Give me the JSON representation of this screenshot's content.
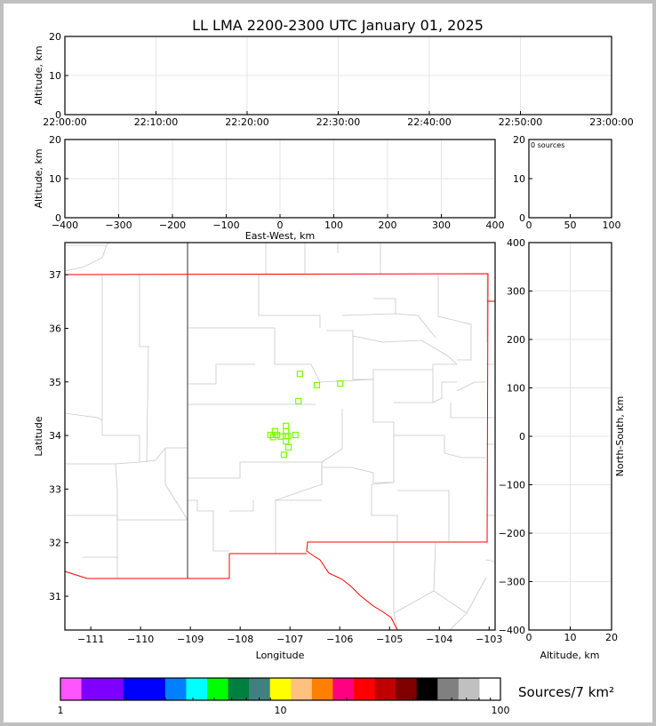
{
  "title": "LL LMA 2200-2300 UTC January 01, 2025",
  "chart_data": [
    {
      "type": "scatter",
      "name_hint": "time-altitude",
      "ylabel": "Altitude, km",
      "xlabel": "",
      "xticks": [
        "22:00:00",
        "22:10:00",
        "22:20:00",
        "22:30:00",
        "22:40:00",
        "22:50:00",
        "23:00:00"
      ],
      "ylim": [
        0,
        20
      ],
      "yticks": [
        0,
        10,
        20
      ],
      "points": []
    },
    {
      "type": "scatter",
      "name_hint": "east-west-altitude",
      "xlabel": "East-West, km",
      "ylabel": "Altitude, km",
      "xlim": [
        -400,
        400
      ],
      "xticks": [
        -400,
        -300,
        -200,
        -100,
        0,
        100,
        200,
        300,
        400
      ],
      "ylim": [
        0,
        20
      ],
      "yticks": [
        0,
        10,
        20
      ],
      "points": []
    },
    {
      "type": "bar",
      "name_hint": "altitude-histogram",
      "annotation": "0 sources",
      "xlim": [
        0,
        100
      ],
      "xticks": [
        0,
        50,
        100
      ],
      "ylim": [
        0,
        20
      ],
      "yticks": [
        0,
        10,
        20
      ],
      "values": []
    },
    {
      "type": "scatter",
      "name_hint": "plan-view-map",
      "xlabel": "Longitude",
      "ylabel": "Latitude",
      "xlim": [
        -111.52,
        -102.88
      ],
      "ylim": [
        30.37,
        37.6
      ],
      "xticks": [
        -111,
        -110,
        -109,
        -108,
        -107,
        -106,
        -105,
        -104,
        -103
      ],
      "yticks": [
        31,
        32,
        33,
        34,
        35,
        36,
        37
      ],
      "marker_color": "#7cfc00",
      "points": [
        {
          "lon": -106.8,
          "lat": 35.15
        },
        {
          "lon": -106.46,
          "lat": 34.94
        },
        {
          "lon": -105.99,
          "lat": 34.97
        },
        {
          "lon": -106.83,
          "lat": 34.64
        },
        {
          "lon": -107.08,
          "lat": 34.18
        },
        {
          "lon": -107.08,
          "lat": 34.08
        },
        {
          "lon": -107.3,
          "lat": 34.08
        },
        {
          "lon": -107.39,
          "lat": 34.01
        },
        {
          "lon": -107.26,
          "lat": 34.01
        },
        {
          "lon": -107.19,
          "lat": 33.98
        },
        {
          "lon": -107.04,
          "lat": 33.99
        },
        {
          "lon": -106.89,
          "lat": 34.01
        },
        {
          "lon": -107.08,
          "lat": 33.99
        },
        {
          "lon": -107.34,
          "lat": 33.97
        },
        {
          "lon": -107.08,
          "lat": 33.89
        },
        {
          "lon": -107.03,
          "lat": 33.78
        },
        {
          "lon": -107.12,
          "lat": 33.64
        }
      ]
    },
    {
      "type": "scatter",
      "name_hint": "altitude-north-south",
      "xlabel": "Altitude, km",
      "ylabel": "North-South, km",
      "xlim": [
        0,
        20
      ],
      "xticks": [
        0,
        10,
        20
      ],
      "ylim": [
        -400,
        400
      ],
      "yticks": [
        -400,
        -300,
        -200,
        -100,
        0,
        100,
        200,
        300,
        400
      ],
      "points": []
    }
  ],
  "colorbar": {
    "label": "Sources/7 km²",
    "scale": "log",
    "ticks": [
      "1",
      "10",
      "100"
    ],
    "colors": [
      {
        "c": "#ff55ff",
        "w": 1
      },
      {
        "c": "#8000ff",
        "w": 2
      },
      {
        "c": "#0000ff",
        "w": 2
      },
      {
        "c": "#0080ff",
        "w": 1
      },
      {
        "c": "#00ffff",
        "w": 1
      },
      {
        "c": "#00ff00",
        "w": 1
      },
      {
        "c": "#008040",
        "w": 1
      },
      {
        "c": "#408080",
        "w": 1
      },
      {
        "c": "#ffff00",
        "w": 1
      },
      {
        "c": "#ffc080",
        "w": 1
      },
      {
        "c": "#ff8000",
        "w": 1
      },
      {
        "c": "#ff0080",
        "w": 1
      },
      {
        "c": "#ff0000",
        "w": 1
      },
      {
        "c": "#c00000",
        "w": 1
      },
      {
        "c": "#800000",
        "w": 1
      },
      {
        "c": "#000000",
        "w": 1
      },
      {
        "c": "#808080",
        "w": 1
      },
      {
        "c": "#c0c0c0",
        "w": 1
      },
      {
        "c": "#ffffff",
        "w": 1
      }
    ]
  },
  "colors": {
    "state_border": "#ff0000",
    "county_border": "#c8c8c8",
    "grid": "#e6e6e6"
  }
}
